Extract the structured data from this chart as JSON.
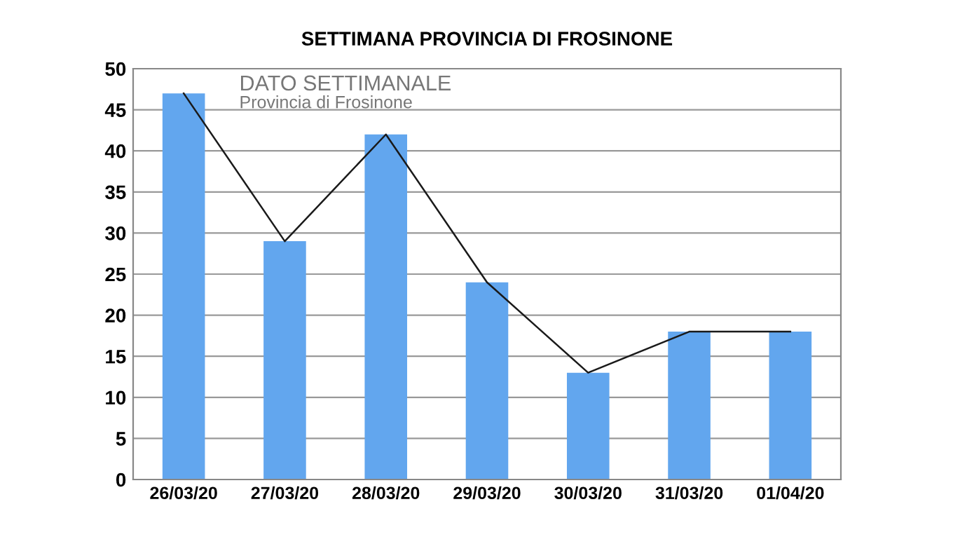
{
  "chart_data": {
    "type": "bar",
    "title": "SETTIMANA PROVINCIA DI FROSINONE",
    "categories": [
      "26/03/20",
      "27/03/20",
      "28/03/20",
      "29/03/20",
      "30/03/20",
      "31/03/20",
      "01/04/20"
    ],
    "series": [
      {
        "color": "#62a6ee",
        "values": [
          47,
          29,
          42,
          24,
          13,
          18,
          18
        ]
      },
      {
        "type": "line",
        "color": "#1a1a1a",
        "values": [
          47,
          29,
          42,
          24,
          13,
          18,
          18
        ]
      }
    ],
    "ylim": [
      0,
      50
    ],
    "yticks": [
      0,
      5,
      10,
      15,
      20,
      25,
      30,
      35,
      40,
      45,
      50
    ],
    "grid": "y",
    "marker": "none",
    "line_style": "solid",
    "annotations": [
      "DATO SETTIMANALE",
      "Provincia di Frosinone"
    ]
  }
}
